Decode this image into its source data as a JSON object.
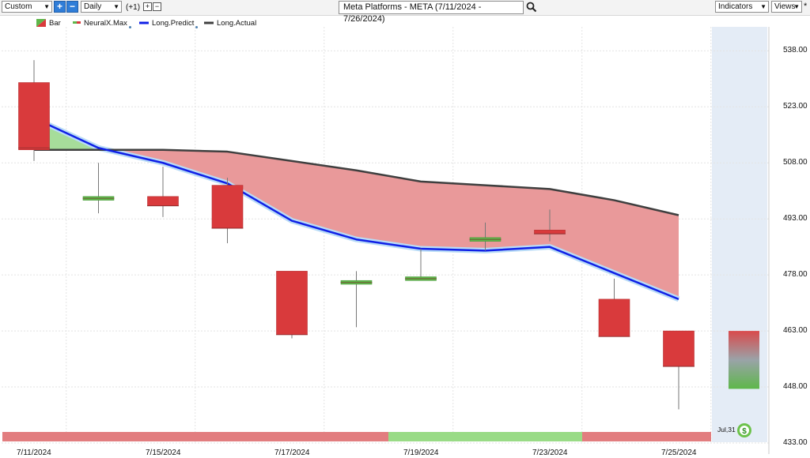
{
  "toolbar": {
    "range_select": "Custom",
    "interval_select": "Daily",
    "offset_label": "(+1)",
    "title": "Meta Platforms - META (7/11/2024 - 7/26/2024)",
    "indicators_button": "Indicators",
    "views_button": "Views"
  },
  "legend": {
    "bar": "Bar",
    "neural": "NeuralX.Max",
    "predict": "Long.Predict",
    "actual": "Long.Actual"
  },
  "future_label": "Jul,31",
  "colors": {
    "down": "#d93a3c",
    "up": "#5eb74a",
    "predict": "#1020e6",
    "actual": "#3f3f3f",
    "fill_below": "#e9999a",
    "fill_above": "#a6dd9a",
    "band_red": "#e27d7f",
    "band_green": "#99db86"
  },
  "chart_data": {
    "type": "candlestick",
    "title": "Meta Platforms - META (7/11/2024 - 7/26/2024)",
    "ylim": [
      433,
      543
    ],
    "yticks": [
      "538.00",
      "523.00",
      "508.00",
      "493.00",
      "478.00",
      "463.00",
      "448.00",
      "433.00"
    ],
    "xticks": [
      "7/11/2024",
      "7/15/2024",
      "7/17/2024",
      "7/19/2024",
      "7/23/2024",
      "7/25/2024"
    ],
    "dates": [
      "7/11/2024",
      "7/12/2024",
      "7/15/2024",
      "7/16/2024",
      "7/17/2024",
      "7/18/2024",
      "7/19/2024",
      "7/22/2024",
      "7/23/2024",
      "7/24/2024",
      "7/25/2024"
    ],
    "candles": [
      {
        "o": 529.5,
        "h": 535.5,
        "l": 508.5,
        "c": 511.5
      },
      {
        "o": 498.0,
        "h": 508.0,
        "l": 494.5,
        "c": 499.0
      },
      {
        "o": 499.0,
        "h": 507.0,
        "l": 493.5,
        "c": 496.5
      },
      {
        "o": 502.0,
        "h": 504.0,
        "l": 486.5,
        "c": 490.5
      },
      {
        "o": 479.0,
        "h": 479.0,
        "l": 461.0,
        "c": 462.0
      },
      {
        "o": 475.5,
        "h": 479.0,
        "l": 464.0,
        "c": 476.5
      },
      {
        "o": 476.5,
        "h": 485.0,
        "l": 476.5,
        "c": 477.5
      },
      {
        "o": 487.0,
        "h": 492.0,
        "l": 484.5,
        "c": 488.0
      },
      {
        "o": 490.0,
        "h": 495.5,
        "l": 487.0,
        "c": 489.0
      },
      {
        "o": 471.5,
        "h": 477.0,
        "l": 461.5,
        "c": 461.5
      },
      {
        "o": 463.0,
        "h": 463.0,
        "l": 442.0,
        "c": 453.5
      }
    ],
    "neural_marks": [
      512.0,
      498.5,
      496.5,
      490.5,
      462.0,
      476.0,
      477.0,
      487.5,
      489.0,
      461.5,
      453.5
    ],
    "series": [
      {
        "name": "Long.Predict",
        "values": [
          520.0,
          512.0,
          508.0,
          502.5,
          492.5,
          487.5,
          485.0,
          484.5,
          485.5,
          478.5,
          471.5
        ]
      },
      {
        "name": "Long.Actual",
        "values": [
          511.5,
          511.5,
          511.5,
          511.0,
          508.5,
          506.0,
          503.0,
          502.0,
          501.0,
          498.0,
          494.0
        ]
      }
    ],
    "future_candle": {
      "date": "Jul,31",
      "top": 463.0,
      "bottom": 447.5
    },
    "signal_band": [
      {
        "from": 0,
        "to": 6,
        "color": "red"
      },
      {
        "from": 6,
        "to": 9,
        "color": "green"
      },
      {
        "from": 9,
        "to": 11,
        "color": "red"
      }
    ]
  }
}
